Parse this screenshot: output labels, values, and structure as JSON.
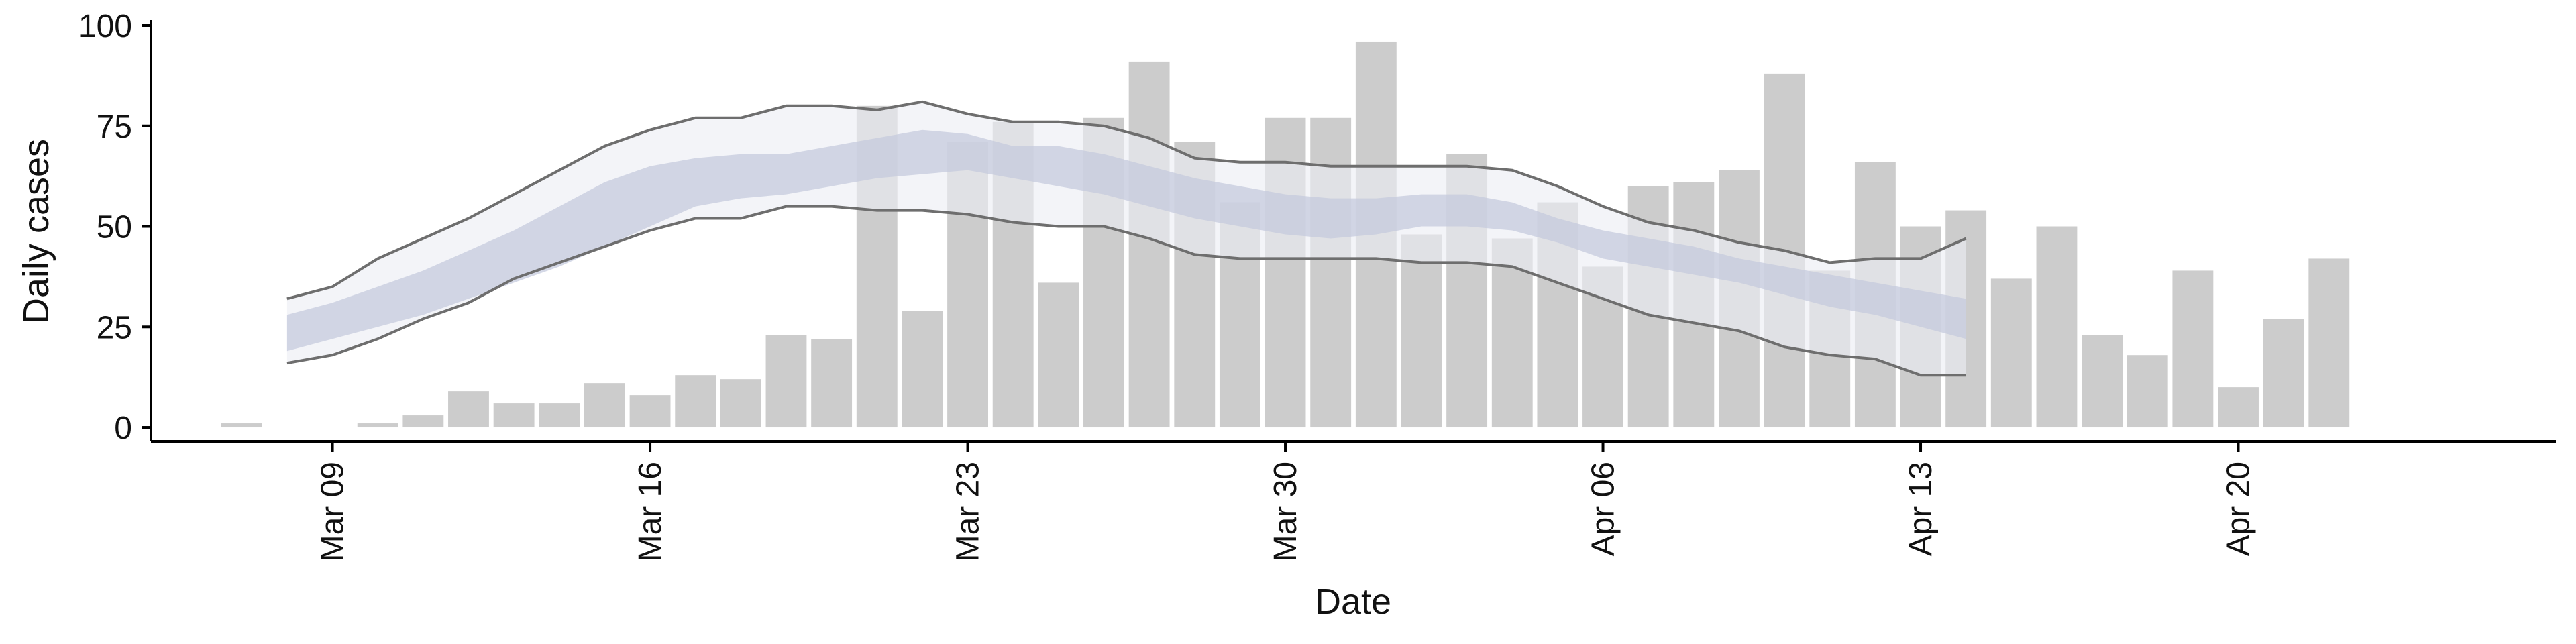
{
  "chart_data": {
    "type": "bar",
    "xlabel": "Date",
    "ylabel": "Daily cases",
    "ylim": [
      -3.5,
      100
    ],
    "xlim": [
      "2020-03-05",
      "2020-04-27"
    ],
    "x_ticks": [
      {
        "date": "2020-03-09",
        "label": "Mar 09"
      },
      {
        "date": "2020-03-16",
        "label": "Mar 16"
      },
      {
        "date": "2020-03-23",
        "label": "Mar 23"
      },
      {
        "date": "2020-03-30",
        "label": "Mar 30"
      },
      {
        "date": "2020-04-06",
        "label": "Apr 06"
      },
      {
        "date": "2020-04-13",
        "label": "Apr 13"
      },
      {
        "date": "2020-04-20",
        "label": "Apr 20"
      }
    ],
    "y_ticks": [
      0,
      25,
      50,
      75,
      100
    ],
    "grid": false,
    "legend": "none",
    "colors": {
      "bars": "#cccccc",
      "outer_band": "#eceef4",
      "inner_band": "#c3c9dd",
      "band_edge_lines": "#6e6e6e",
      "axis": "#000000"
    },
    "daily_cases": {
      "dates": [
        "2020-03-07",
        "2020-03-08",
        "2020-03-09",
        "2020-03-10",
        "2020-03-11",
        "2020-03-12",
        "2020-03-13",
        "2020-03-14",
        "2020-03-15",
        "2020-03-16",
        "2020-03-17",
        "2020-03-18",
        "2020-03-19",
        "2020-03-20",
        "2020-03-21",
        "2020-03-22",
        "2020-03-23",
        "2020-03-24",
        "2020-03-25",
        "2020-03-26",
        "2020-03-27",
        "2020-03-28",
        "2020-03-29",
        "2020-03-30",
        "2020-03-31",
        "2020-04-01",
        "2020-04-02",
        "2020-04-03",
        "2020-04-04",
        "2020-04-05",
        "2020-04-06",
        "2020-04-07",
        "2020-04-08",
        "2020-04-09",
        "2020-04-10",
        "2020-04-11",
        "2020-04-12",
        "2020-04-13",
        "2020-04-14",
        "2020-04-15",
        "2020-04-16",
        "2020-04-17",
        "2020-04-18",
        "2020-04-19",
        "2020-04-20",
        "2020-04-21",
        "2020-04-22",
        "2020-04-23"
      ],
      "values": [
        1,
        0,
        0,
        1,
        3,
        9,
        6,
        6,
        11,
        8,
        13,
        12,
        23,
        22,
        80,
        29,
        71,
        76,
        36,
        77,
        91,
        71,
        56,
        77,
        77,
        96,
        48,
        68,
        47,
        56,
        40,
        60,
        61,
        64,
        88,
        39,
        66,
        50,
        54,
        37,
        50,
        23,
        18,
        39,
        10,
        27,
        42,
        0
      ]
    },
    "fitted_band": {
      "dates": [
        "2020-03-08",
        "2020-03-09",
        "2020-03-10",
        "2020-03-11",
        "2020-03-12",
        "2020-03-13",
        "2020-03-14",
        "2020-03-15",
        "2020-03-16",
        "2020-03-17",
        "2020-03-18",
        "2020-03-19",
        "2020-03-20",
        "2020-03-21",
        "2020-03-22",
        "2020-03-23",
        "2020-03-24",
        "2020-03-25",
        "2020-03-26",
        "2020-03-27",
        "2020-03-28",
        "2020-03-29",
        "2020-03-30",
        "2020-03-31",
        "2020-04-01",
        "2020-04-02",
        "2020-04-03",
        "2020-04-04",
        "2020-04-05",
        "2020-04-06",
        "2020-04-07",
        "2020-04-08",
        "2020-04-09",
        "2020-04-10",
        "2020-04-11",
        "2020-04-12",
        "2020-04-13",
        "2020-04-14"
      ],
      "upper_90": [
        32,
        35,
        42,
        47,
        52,
        58,
        64,
        70,
        74,
        77,
        77,
        80,
        80,
        79,
        81,
        78,
        76,
        76,
        75,
        72,
        67,
        66,
        66,
        65,
        65,
        65,
        65,
        64,
        60,
        55,
        51,
        49,
        46,
        44,
        41,
        42,
        42,
        47
      ],
      "upper_50": [
        28,
        31,
        35,
        39,
        44,
        49,
        55,
        61,
        65,
        67,
        68,
        68,
        70,
        72,
        74,
        73,
        70,
        70,
        68,
        65,
        62,
        60,
        58,
        57,
        57,
        58,
        58,
        56,
        52,
        49,
        47,
        45,
        42,
        40,
        38,
        36,
        34,
        32
      ],
      "lower_50": [
        19,
        22,
        25,
        28,
        32,
        36,
        40,
        45,
        50,
        55,
        57,
        58,
        60,
        62,
        63,
        64,
        62,
        60,
        58,
        55,
        52,
        50,
        48,
        47,
        48,
        50,
        50,
        49,
        46,
        42,
        40,
        38,
        36,
        33,
        30,
        28,
        25,
        22
      ],
      "lower_90": [
        16,
        18,
        22,
        27,
        31,
        37,
        41,
        45,
        49,
        52,
        52,
        55,
        55,
        54,
        54,
        53,
        51,
        50,
        50,
        47,
        43,
        42,
        42,
        42,
        42,
        41,
        41,
        40,
        36,
        32,
        28,
        26,
        24,
        20,
        18,
        17,
        13,
        13
      ]
    }
  }
}
